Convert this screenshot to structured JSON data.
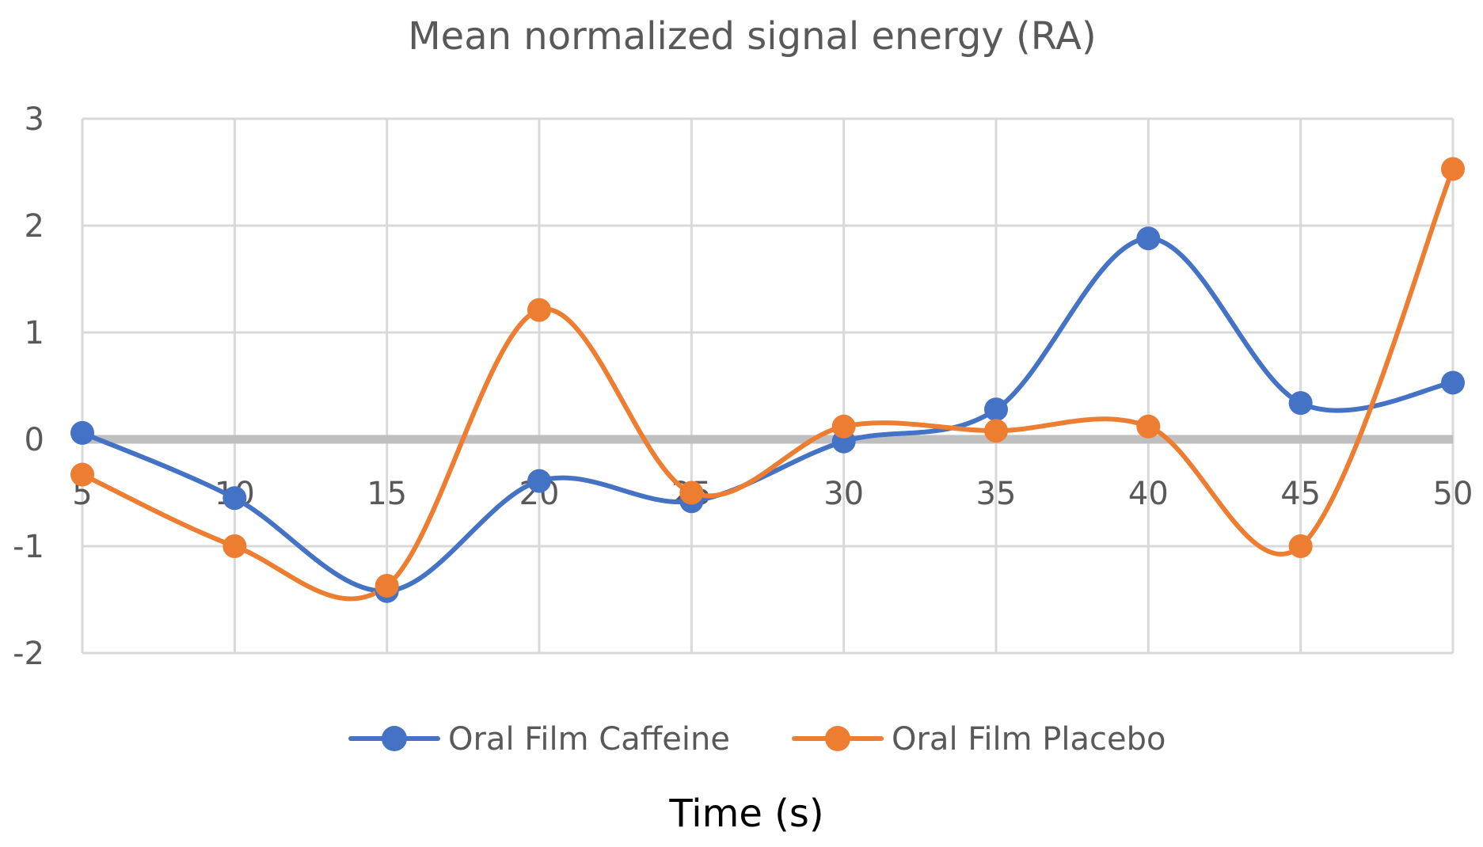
{
  "chart_data": {
    "type": "line",
    "title": "Mean normalized signal energy (RA)",
    "xlabel": "Time (s)",
    "ylabel": "",
    "x": [
      5,
      10,
      15,
      20,
      25,
      30,
      35,
      40,
      45,
      50
    ],
    "x_tick_labels": [
      "5",
      "10",
      "15",
      "20",
      "25",
      "30",
      "35",
      "40",
      "45",
      "50"
    ],
    "y_tick_labels": [
      "3",
      "2",
      "1",
      "0",
      "-1",
      "-2"
    ],
    "y_ticks": [
      3,
      2,
      1,
      0,
      -1,
      -2
    ],
    "ylim": [
      -2,
      3
    ],
    "grid": true,
    "smoothed": true,
    "legend_position": "bottom",
    "series": [
      {
        "name": "Oral Film Caffeine",
        "color": "#4472c4",
        "values": [
          0.06,
          -0.55,
          -1.42,
          -0.39,
          -0.58,
          -0.02,
          0.28,
          1.88,
          0.34,
          0.53
        ]
      },
      {
        "name": "Oral Film Placebo",
        "color": "#ed7d31",
        "values": [
          -0.33,
          -1.0,
          -1.37,
          1.21,
          -0.5,
          0.12,
          0.08,
          0.12,
          -1.0,
          2.53
        ]
      }
    ]
  }
}
